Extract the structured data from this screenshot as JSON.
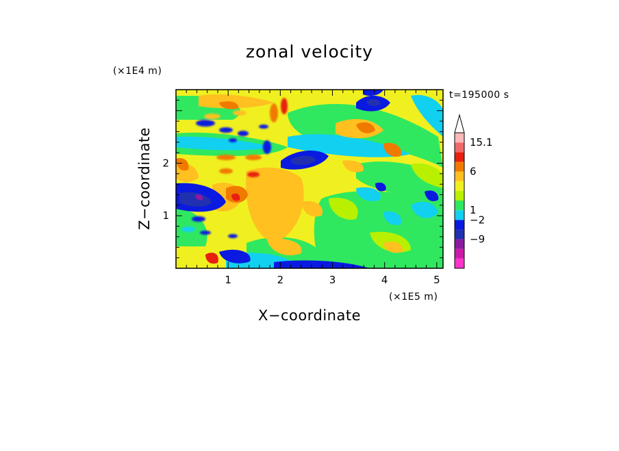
{
  "chart_data": {
    "type": "heatmap",
    "title": "zonal velocity",
    "xlabel": "X−coordinate",
    "ylabel": "Z−coordinate",
    "x_scale_label": "(×1E5 m)",
    "y_scale_label": "(×1E4 m)",
    "time_label": "t=195000 s",
    "xlim": [
      0,
      5.12
    ],
    "ylim": [
      0,
      3.4
    ],
    "x_ticks": [
      1,
      2,
      3,
      4,
      5
    ],
    "y_ticks": [
      1,
      2
    ],
    "x_tick_labels": [
      "1",
      "2",
      "3",
      "4",
      "5"
    ],
    "y_tick_labels": [
      "1",
      "2"
    ],
    "colorbar": {
      "colors": [
        "#ff33cc",
        "#cc1aa8",
        "#8a1aa0",
        "#2030b0",
        "#0a1ae0",
        "#12d0f0",
        "#30e860",
        "#b8f000",
        "#f0f020",
        "#ffc020",
        "#f07a00",
        "#e82010",
        "#f06a6a",
        "#ffb8b8"
      ],
      "labels": [
        "15.1",
        "6",
        "1",
        "−2",
        "−9"
      ],
      "extend_max": true
    }
  }
}
